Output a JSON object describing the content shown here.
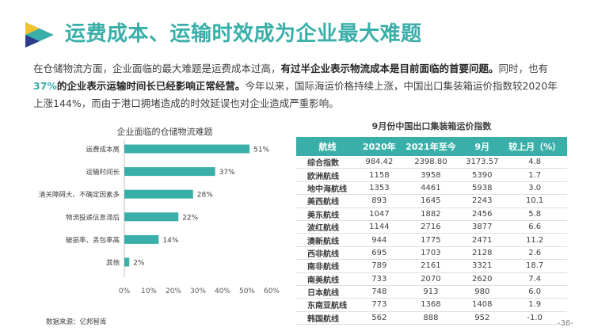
{
  "title": "运费成本、运输时效成为企业最大难题",
  "intro": {
    "part1": "在仓储物流方面，企业面临的最大难题是运费成本过高，",
    "part2_bold": "有过半企业表示物流成本是目前面临的首要问题。",
    "part3": "同时，也有",
    "part4_pct": "37%",
    "part5_bold": "的企业表示运输时间长已经影响正常经营。",
    "part6": "今年以来，国际海运价格持续上涨，中国出口集装箱运价指数较2020年上涨144%，而由于港口拥堵造成的时效延误也对企业造成严重影响。"
  },
  "chart_data": [
    {
      "type": "bar",
      "orientation": "horizontal",
      "title": "企业面临的仓储物流难题",
      "categories": [
        "运费成本高",
        "运输时间长",
        "清关障碍大、不确定因素多",
        "物流投递信息滞后",
        "破损率、丢包率高",
        "其他"
      ],
      "values": [
        51,
        37,
        28,
        22,
        14,
        2
      ],
      "value_labels": [
        "51%",
        "37%",
        "28%",
        "22%",
        "14%",
        "2%"
      ],
      "xlim": [
        0,
        60
      ],
      "xticks": [
        "0%",
        "10%",
        "20%",
        "30%",
        "40%",
        "50%",
        "60%"
      ],
      "bar_color": "#3aafa9",
      "grid": false
    },
    {
      "type": "table",
      "title": "9月份中国出口集装箱运价指数",
      "columns": [
        "航线",
        "2020年",
        "2021年至今",
        "9月",
        "较上月（%）"
      ],
      "rows": [
        [
          "综合指数",
          "984.42",
          "2398.80",
          "3173.57",
          "4.8"
        ],
        [
          "欧洲航线",
          "1158",
          "3958",
          "5390",
          "1.7"
        ],
        [
          "地中海航线",
          "1353",
          "4461",
          "5938",
          "3.0"
        ],
        [
          "美西航线",
          "893",
          "1645",
          "2243",
          "10.1"
        ],
        [
          "美东航线",
          "1047",
          "1882",
          "2456",
          "5.8"
        ],
        [
          "波红航线",
          "1144",
          "2716",
          "3877",
          "6.6"
        ],
        [
          "澳新航线",
          "944",
          "1775",
          "2471",
          "11.2"
        ],
        [
          "西非航线",
          "695",
          "1703",
          "2128",
          "2.6"
        ],
        [
          "南非航线",
          "789",
          "2161",
          "3321",
          "18.7"
        ],
        [
          "南美航线",
          "733",
          "2070",
          "2620",
          "7.4"
        ],
        [
          "日本航线",
          "748",
          "913",
          "980",
          "6.0"
        ],
        [
          "东南亚航线",
          "773",
          "1368",
          "1408",
          "1.9"
        ],
        [
          "韩国航线",
          "562",
          "888",
          "952",
          "-1.0"
        ]
      ],
      "header_color": "#3aafa9"
    }
  ],
  "source": "数据来源：亿邦智库",
  "page_number": "-36-",
  "colors": {
    "accent": "#3aafa9",
    "logo_dark": "#2b3a8c",
    "logo_yellow": "#f2c12e",
    "logo_teal": "#3aafa9"
  }
}
